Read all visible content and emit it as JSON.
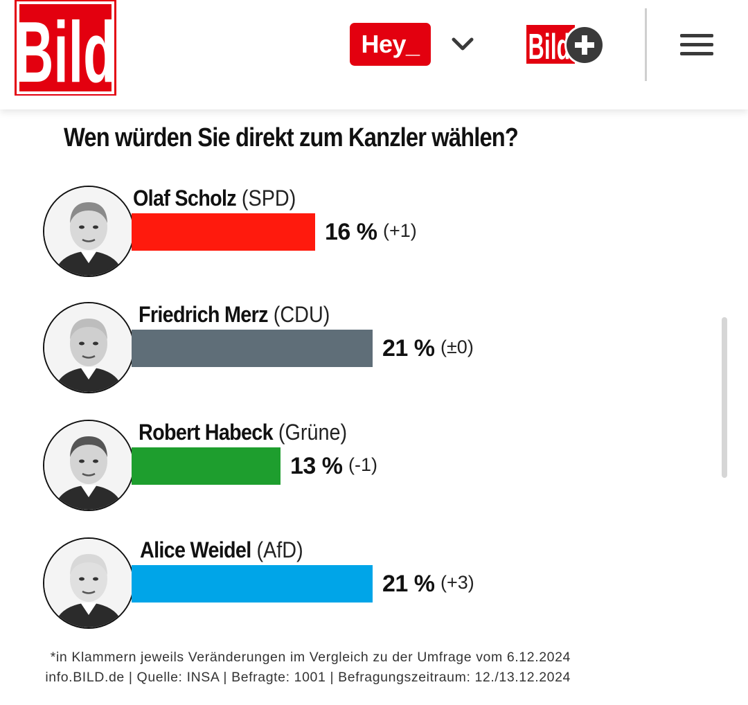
{
  "header": {
    "logo_text": "Bild",
    "hey_label": "Hey_",
    "bildplus_text": "Bild",
    "colors": {
      "brand_red": "#e3000f"
    }
  },
  "poll": {
    "title": "Wen würden Sie direkt zum Kanzler wählen?",
    "candidates": [
      {
        "name": "Olaf Scholz",
        "party": "(SPD)",
        "percent_label": "16 %",
        "change": "(+1)",
        "value": 16,
        "color": "#ff1a0d"
      },
      {
        "name": "Friedrich Merz",
        "party": "(CDU)",
        "percent_label": "21 %",
        "change": "(±0)",
        "value": 21,
        "color": "#5f6e78"
      },
      {
        "name": "Robert Habeck",
        "party": "(Grüne)",
        "percent_label": "13 %",
        "change": "(-1)",
        "value": 13,
        "color": "#1e9e2e"
      },
      {
        "name": "Alice Weidel",
        "party": "(AfD)",
        "percent_label": "21 %",
        "change": "(+3)",
        "value": 21,
        "color": "#00a5e8"
      }
    ],
    "footnote_line1": "*in Klammern jeweils Veränderungen im Vergleich zu der Umfrage vom 6.12.2024",
    "footnote_line2": "info.BILD.de | Quelle: INSA | Befragte: 1001 | Befragungszeitraum: 12./13.12.2024"
  }
}
